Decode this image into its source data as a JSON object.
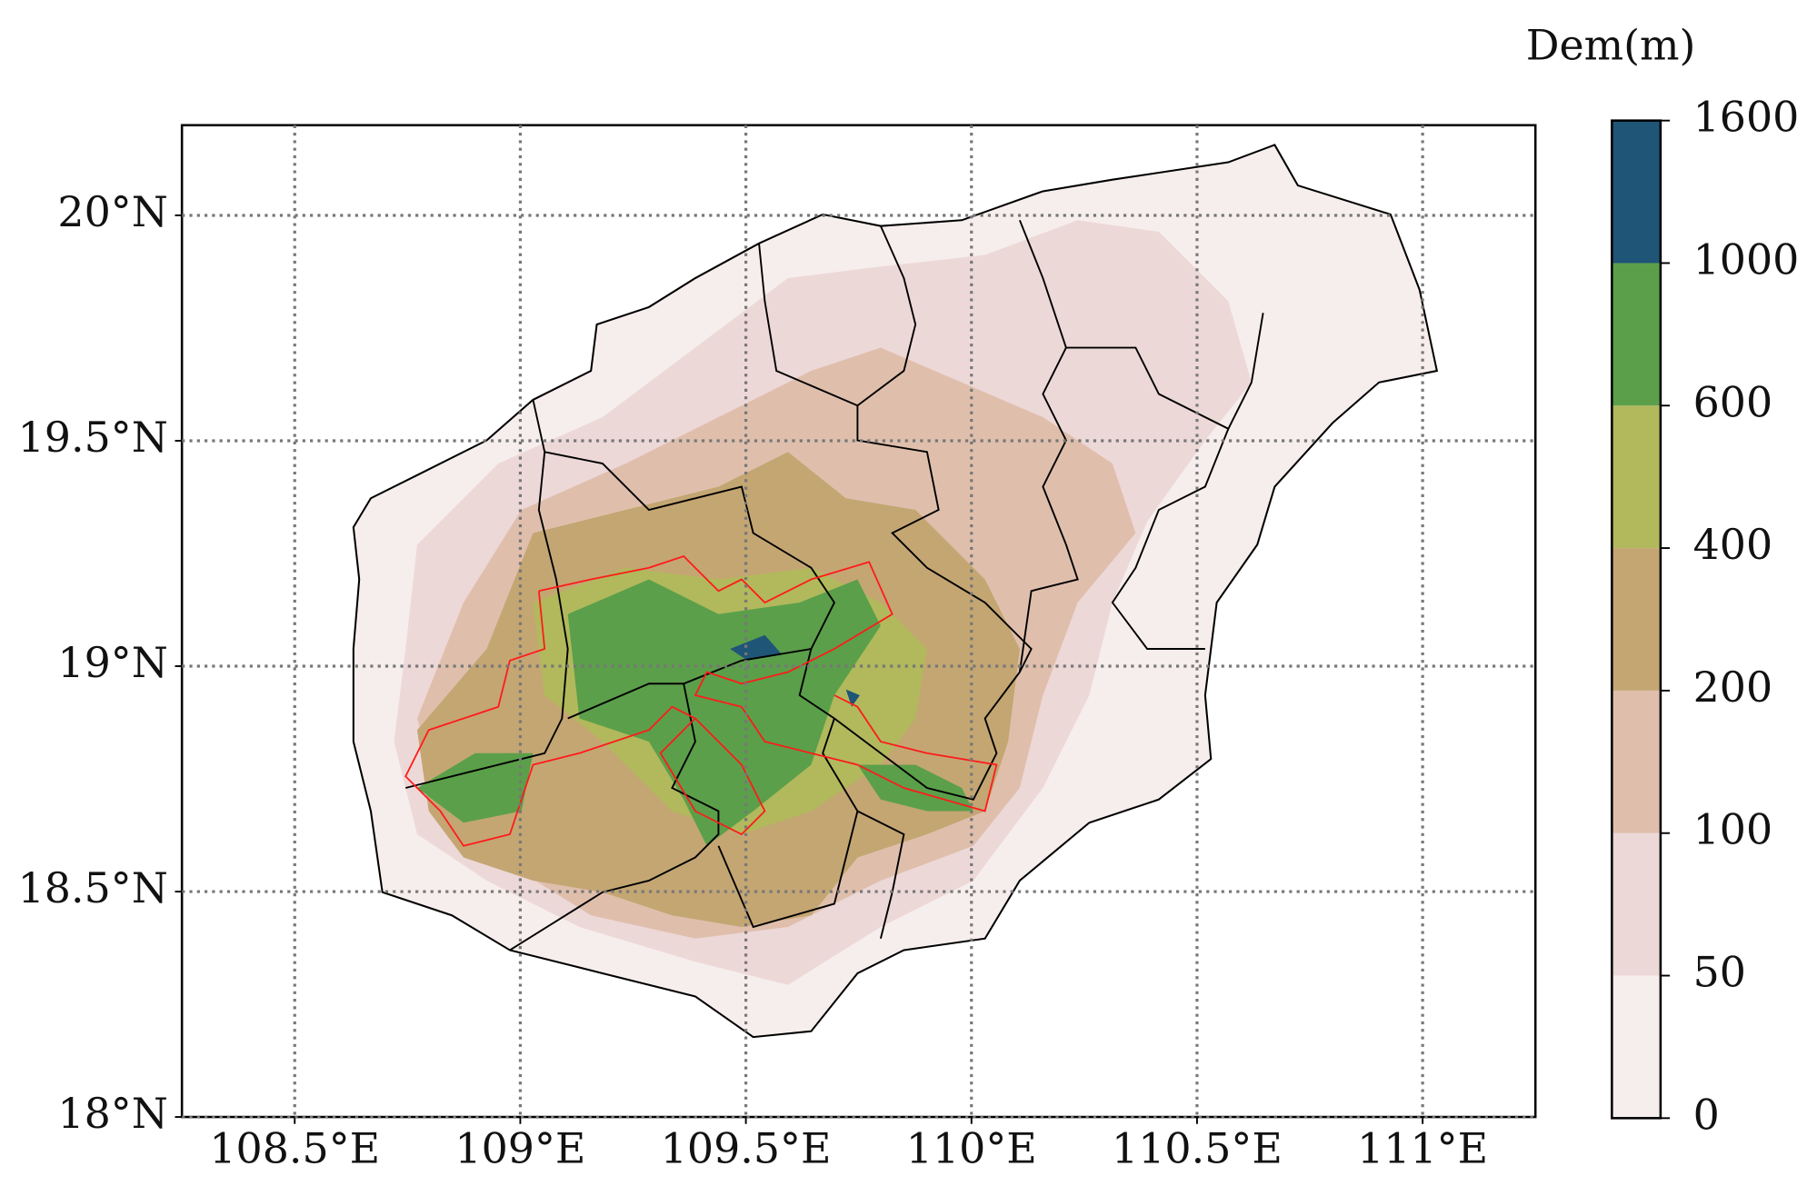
{
  "chart_data": {
    "type": "map",
    "xlim": [
      108.25,
      111.25
    ],
    "ylim": [
      18,
      20.2
    ],
    "xticks": [
      {
        "value": 108.5,
        "label": "108.5°E"
      },
      {
        "value": 109,
        "label": "109°E"
      },
      {
        "value": 109.5,
        "label": "109.5°E"
      },
      {
        "value": 110,
        "label": "110°E"
      },
      {
        "value": 110.5,
        "label": "110.5°E"
      },
      {
        "value": 111,
        "label": "111°E"
      }
    ],
    "yticks": [
      {
        "value": 18,
        "label": "18°N"
      },
      {
        "value": 18.5,
        "label": "18.5°N"
      },
      {
        "value": 19,
        "label": "19°N"
      },
      {
        "value": 19.5,
        "label": "19.5°N"
      },
      {
        "value": 20,
        "label": "20°N"
      }
    ],
    "grid": true,
    "colorbar": {
      "title": "Dem(m)",
      "levels": [
        0,
        50,
        100,
        200,
        400,
        600,
        1000,
        1600
      ],
      "colors": [
        "#f6eeec",
        "#edd8d8",
        "#dfbfac",
        "#c4a673",
        "#b1b95c",
        "#5b9f4a",
        "#1f5577"
      ]
    }
  }
}
